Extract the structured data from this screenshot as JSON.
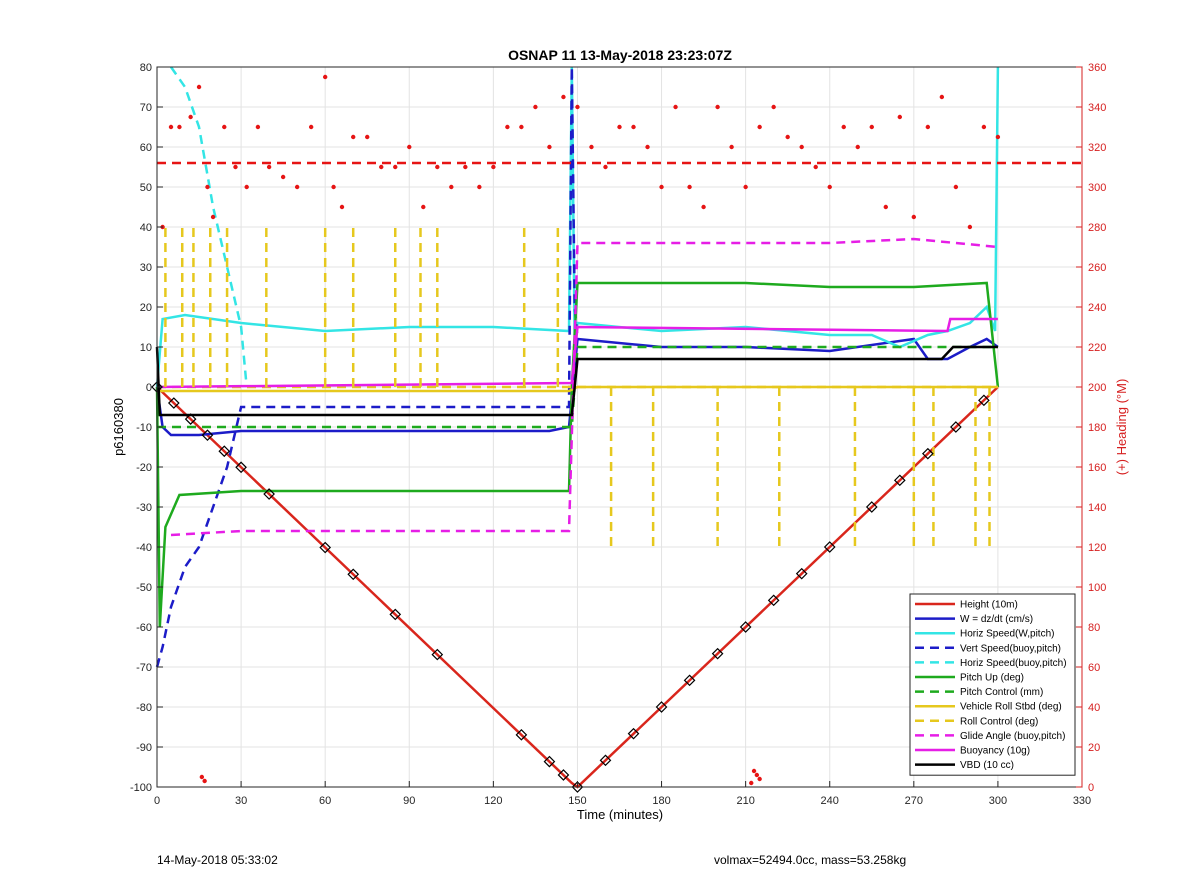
{
  "chart_data": {
    "type": "line",
    "title": "OSNAP 11 13-May-2018 23:23:07Z",
    "xlabel": "Time (minutes)",
    "ylabel": "p6160380",
    "y2label": "(+) Heading (°M)",
    "xlim": [
      0,
      330
    ],
    "ylim": [
      -100,
      80
    ],
    "y2lim": [
      0,
      360
    ],
    "xticks": [
      0,
      30,
      60,
      90,
      120,
      150,
      180,
      210,
      240,
      270,
      300,
      330
    ],
    "yticks": [
      -100,
      -90,
      -80,
      -70,
      -60,
      -50,
      -40,
      -30,
      -20,
      -10,
      0,
      10,
      20,
      30,
      40,
      50,
      60,
      70,
      80
    ],
    "y2ticks": [
      0,
      20,
      40,
      60,
      80,
      100,
      120,
      140,
      160,
      180,
      200,
      220,
      240,
      260,
      280,
      300,
      320,
      340,
      360
    ],
    "grid": true,
    "legend_position": "bottom-right",
    "colors": {
      "height": "#d9261c",
      "w": "#1c1cc8",
      "horiz_speed": "#33e5e5",
      "pitch": "#1eaa1e",
      "roll": "#e6c81e",
      "glide": "#e61ee6",
      "buoyancy": "#e61ee6",
      "vbd": "#000000",
      "heading": "#e61414",
      "right_axis": "#d62020"
    },
    "series": [
      {
        "name": "Height (10m)",
        "style": "solid",
        "color": "#d9261c",
        "x": [
          0,
          148,
          150,
          300
        ],
        "y": [
          0,
          -99,
          -100,
          0
        ]
      },
      {
        "name": "W = dz/dt (cm/s)",
        "style": "solid",
        "color": "#1c1cc8",
        "x": [
          0,
          2,
          5,
          15,
          30,
          60,
          90,
          120,
          140,
          147,
          150,
          180,
          210,
          240,
          270,
          275,
          282,
          290,
          296,
          300
        ],
        "y": [
          0,
          -10,
          -12,
          -12,
          -11,
          -11,
          -11,
          -11,
          -11,
          -10,
          12,
          10,
          10,
          9,
          12,
          7,
          7,
          10,
          12,
          10
        ]
      },
      {
        "name": "Horiz Speed(W,pitch)",
        "style": "solid",
        "color": "#33e5e5",
        "x": [
          0,
          2,
          10,
          30,
          60,
          90,
          120,
          147,
          148,
          149,
          150,
          180,
          210,
          240,
          255,
          265,
          275,
          282,
          290,
          296,
          299,
          300
        ],
        "y": [
          0,
          17,
          18,
          16,
          14,
          15,
          15,
          14,
          80,
          10,
          16,
          14,
          15,
          13,
          13,
          10,
          13,
          14,
          16,
          20,
          14,
          80
        ]
      },
      {
        "name": "Vert Speed(buoy,pitch)",
        "style": "dash",
        "color": "#1c1cc8",
        "x": [
          0,
          2,
          5,
          10,
          15,
          20,
          25,
          30,
          147,
          148,
          149,
          150
        ],
        "y": [
          -70,
          -65,
          -55,
          -45,
          -40,
          -30,
          -20,
          -5,
          -5,
          80,
          20,
          12
        ]
      },
      {
        "name": "Horiz Speed(buoy,pitch)",
        "style": "dash",
        "color": "#33e5e5",
        "x": [
          5,
          10,
          15,
          20,
          25,
          30,
          32
        ],
        "y": [
          80,
          75,
          65,
          45,
          30,
          15,
          0
        ]
      },
      {
        "name": "Pitch Up (deg)",
        "style": "solid",
        "color": "#1eaa1e",
        "x": [
          0,
          1,
          3,
          8,
          30,
          60,
          90,
          120,
          147,
          148,
          150,
          180,
          210,
          240,
          270,
          296,
          300
        ],
        "y": [
          0,
          -60,
          -35,
          -27,
          -26,
          -26,
          -26,
          -26,
          -26,
          0,
          26,
          26,
          26,
          25,
          25,
          26,
          0
        ]
      },
      {
        "name": "Pitch Control (mm)",
        "style": "dash",
        "color": "#1eaa1e",
        "x": [
          0,
          148,
          150,
          300
        ],
        "y": [
          -10,
          -10,
          10,
          10
        ]
      },
      {
        "name": "Vehicle Roll Stbd (deg)",
        "style": "solid",
        "color": "#e6c81e",
        "x": [
          0,
          30,
          60,
          90,
          120,
          147,
          150,
          180,
          210,
          240,
          270,
          300
        ],
        "y": [
          -1,
          -1,
          -1,
          -1,
          -1,
          -1,
          0,
          0,
          0,
          0,
          0,
          0
        ]
      },
      {
        "name": "Roll Control (deg)",
        "style": "dash",
        "color": "#e6c81e",
        "x": [
          0,
          148,
          150,
          300
        ],
        "y": [
          0,
          0,
          0,
          0
        ]
      },
      {
        "name": "Glide Angle (buoy,pitch)",
        "style": "dash",
        "color": "#e61ee6",
        "x": [
          5,
          30,
          60,
          90,
          120,
          147,
          150,
          180,
          210,
          240,
          270,
          285,
          300
        ],
        "y": [
          -37,
          -36,
          -36,
          -36,
          -36,
          -36,
          36,
          36,
          36,
          36,
          37,
          36,
          35
        ]
      },
      {
        "name": "Buoyancy (10g)",
        "style": "solid",
        "color": "#e61ee6",
        "x": [
          0,
          148,
          150,
          282,
          283,
          300
        ],
        "y": [
          0,
          1,
          15,
          14,
          17,
          17
        ]
      },
      {
        "name": "VBD (10 cc)",
        "style": "solid",
        "color": "#000000",
        "x": [
          0,
          1,
          148,
          149,
          150,
          280,
          284,
          300
        ],
        "y": [
          10,
          -7,
          -7,
          0,
          7,
          7,
          10,
          10
        ]
      }
    ],
    "roll_spikes_min": [
      3,
      9,
      13,
      19,
      25,
      39,
      60,
      70,
      85,
      94,
      100,
      131,
      143,
      162,
      177,
      200,
      222,
      249,
      270,
      277,
      292,
      297
    ],
    "heading_points_deg": {
      "reference_line": 312,
      "samples_x": [
        2,
        5,
        8,
        12,
        15,
        18,
        20,
        24,
        28,
        32,
        36,
        40,
        45,
        50,
        55,
        60,
        63,
        66,
        70,
        75,
        80,
        85,
        90,
        95,
        100,
        105,
        110,
        115,
        120,
        125,
        130,
        135,
        140,
        145,
        150,
        155,
        160,
        165,
        170,
        175,
        180,
        185,
        190,
        195,
        200,
        205,
        210,
        215,
        220,
        225,
        230,
        235,
        240,
        245,
        250,
        255,
        260,
        265,
        270,
        275,
        280,
        285,
        290,
        295,
        300
      ],
      "samples_y": [
        280,
        330,
        330,
        335,
        350,
        300,
        285,
        330,
        310,
        300,
        330,
        310,
        305,
        300,
        330,
        355,
        300,
        290,
        325,
        325,
        310,
        310,
        320,
        290,
        310,
        300,
        310,
        300,
        310,
        330,
        330,
        340,
        320,
        345,
        340,
        320,
        310,
        330,
        330,
        320,
        300,
        340,
        300,
        290,
        340,
        320,
        300,
        330,
        340,
        325,
        320,
        310,
        300,
        330,
        320,
        330,
        290,
        335,
        285,
        330,
        345,
        300,
        280,
        330,
        325
      ],
      "outliers_x": [
        16,
        17,
        212,
        213,
        214,
        215
      ],
      "outliers_y": [
        5,
        3,
        2,
        8,
        6,
        4
      ]
    },
    "legend_entries": [
      {
        "label": "Height (10m)",
        "color": "#d9261c",
        "style": "solid"
      },
      {
        "label": "W = dz/dt (cm/s)",
        "color": "#1c1cc8",
        "style": "solid"
      },
      {
        "label": "Horiz Speed(W,pitch)",
        "color": "#33e5e5",
        "style": "solid"
      },
      {
        "label": "Vert Speed(buoy,pitch)",
        "color": "#1c1cc8",
        "style": "dash"
      },
      {
        "label": "Horiz Speed(buoy,pitch)",
        "color": "#33e5e5",
        "style": "dash"
      },
      {
        "label": "Pitch Up (deg)",
        "color": "#1eaa1e",
        "style": "solid"
      },
      {
        "label": "Pitch Control (mm)",
        "color": "#1eaa1e",
        "style": "dash"
      },
      {
        "label": "Vehicle Roll Stbd (deg)",
        "color": "#e6c81e",
        "style": "solid"
      },
      {
        "label": "Roll Control (deg)",
        "color": "#e6c81e",
        "style": "dash"
      },
      {
        "label": "Glide Angle (buoy,pitch)",
        "color": "#e61ee6",
        "style": "dash"
      },
      {
        "label": "Buoyancy (10g)",
        "color": "#e61ee6",
        "style": "solid"
      },
      {
        "label": "VBD (10 cc)",
        "color": "#000000",
        "style": "solid"
      }
    ]
  },
  "footer": {
    "left": "14-May-2018 05:33:02",
    "right": "volmax=52494.0cc, mass=53.258kg"
  }
}
